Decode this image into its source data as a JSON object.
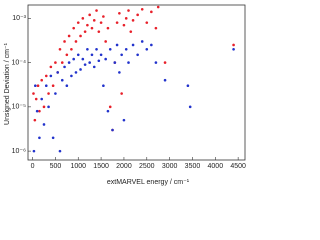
{
  "chart_data": {
    "type": "scatter",
    "x_label": "extMARVEL energy / cm⁻¹",
    "y_label": "Unsigned Deviation / cm⁻¹",
    "log_y": true,
    "xlim": [
      -100,
      4650
    ],
    "ylim": [
      6.3e-07,
      0.002
    ],
    "xticks": [
      0,
      500,
      1000,
      1500,
      2000,
      2500,
      3000,
      3500,
      4000,
      4500
    ],
    "yticks": [
      {
        "value": 1e-06,
        "label": "10⁻⁶"
      },
      {
        "value": 1e-05,
        "label": "10⁻⁵"
      },
      {
        "value": 0.0001,
        "label": "10⁻⁴"
      },
      {
        "value": 0.001,
        "label": "10⁻³"
      }
    ],
    "series": [
      {
        "color": "#e8202a",
        "x": [
          20,
          50,
          80,
          120,
          150,
          200,
          250,
          300,
          350,
          400,
          450,
          500,
          550,
          600,
          650,
          700,
          750,
          800,
          850,
          900,
          950,
          1000,
          1050,
          1100,
          1150,
          1200,
          1250,
          1300,
          1350,
          1400,
          1450,
          1500,
          1550,
          1600,
          1650,
          1700,
          1750,
          1800,
          1850,
          1900,
          1950,
          2000,
          2050,
          2100,
          2150,
          2200,
          2300,
          2400,
          2500,
          2600,
          2700,
          2750,
          2900,
          4400
        ],
        "values": [
          2e-05,
          5e-06,
          1.5e-05,
          3e-05,
          8e-06,
          4e-05,
          1e-05,
          5e-05,
          2e-05,
          8e-05,
          3e-05,
          0.0001,
          6e-05,
          0.0002,
          0.0001,
          0.0003,
          0.00015,
          0.0004,
          0.0002,
          0.0006,
          0.0003,
          0.0008,
          0.0004,
          0.001,
          0.0005,
          0.0007,
          0.0012,
          0.0006,
          0.0009,
          0.0015,
          0.0005,
          0.0008,
          0.0011,
          0.0003,
          0.0006,
          1e-05,
          3e-06,
          0.0001,
          0.0008,
          0.0013,
          2e-05,
          0.0007,
          0.001,
          0.0015,
          0.0005,
          0.0009,
          0.0012,
          0.0016,
          0.0008,
          0.0014,
          0.0006,
          0.0018,
          0.0001,
          0.00025
        ]
      },
      {
        "color": "#2233cc",
        "x": [
          30,
          60,
          100,
          150,
          200,
          250,
          300,
          350,
          400,
          450,
          500,
          550,
          600,
          650,
          700,
          750,
          800,
          850,
          900,
          950,
          1000,
          1050,
          1100,
          1150,
          1200,
          1250,
          1300,
          1350,
          1400,
          1450,
          1500,
          1550,
          1600,
          1650,
          1700,
          1750,
          1800,
          1850,
          1900,
          1950,
          2000,
          2050,
          2100,
          2200,
          2300,
          2400,
          2500,
          2600,
          2700,
          2900,
          3400,
          3450,
          4400
        ],
        "values": [
          1e-06,
          3e-05,
          8e-06,
          2e-06,
          1.5e-05,
          4e-06,
          3e-05,
          1e-05,
          5e-05,
          2e-06,
          2e-05,
          6e-05,
          1e-06,
          4e-05,
          8e-05,
          3e-05,
          0.0001,
          5e-05,
          0.00012,
          6e-05,
          0.00015,
          7e-05,
          0.00012,
          9e-05,
          0.0002,
          0.0001,
          0.00015,
          8e-05,
          0.0002,
          0.00011,
          0.00015,
          3e-05,
          0.00012,
          8e-06,
          0.0002,
          3e-06,
          0.0001,
          0.00025,
          6e-05,
          0.00015,
          5e-06,
          0.0002,
          0.0001,
          0.00025,
          0.00015,
          0.0003,
          0.0002,
          0.00025,
          0.0001,
          4e-05,
          3e-05,
          1e-05,
          0.0002
        ]
      }
    ]
  }
}
